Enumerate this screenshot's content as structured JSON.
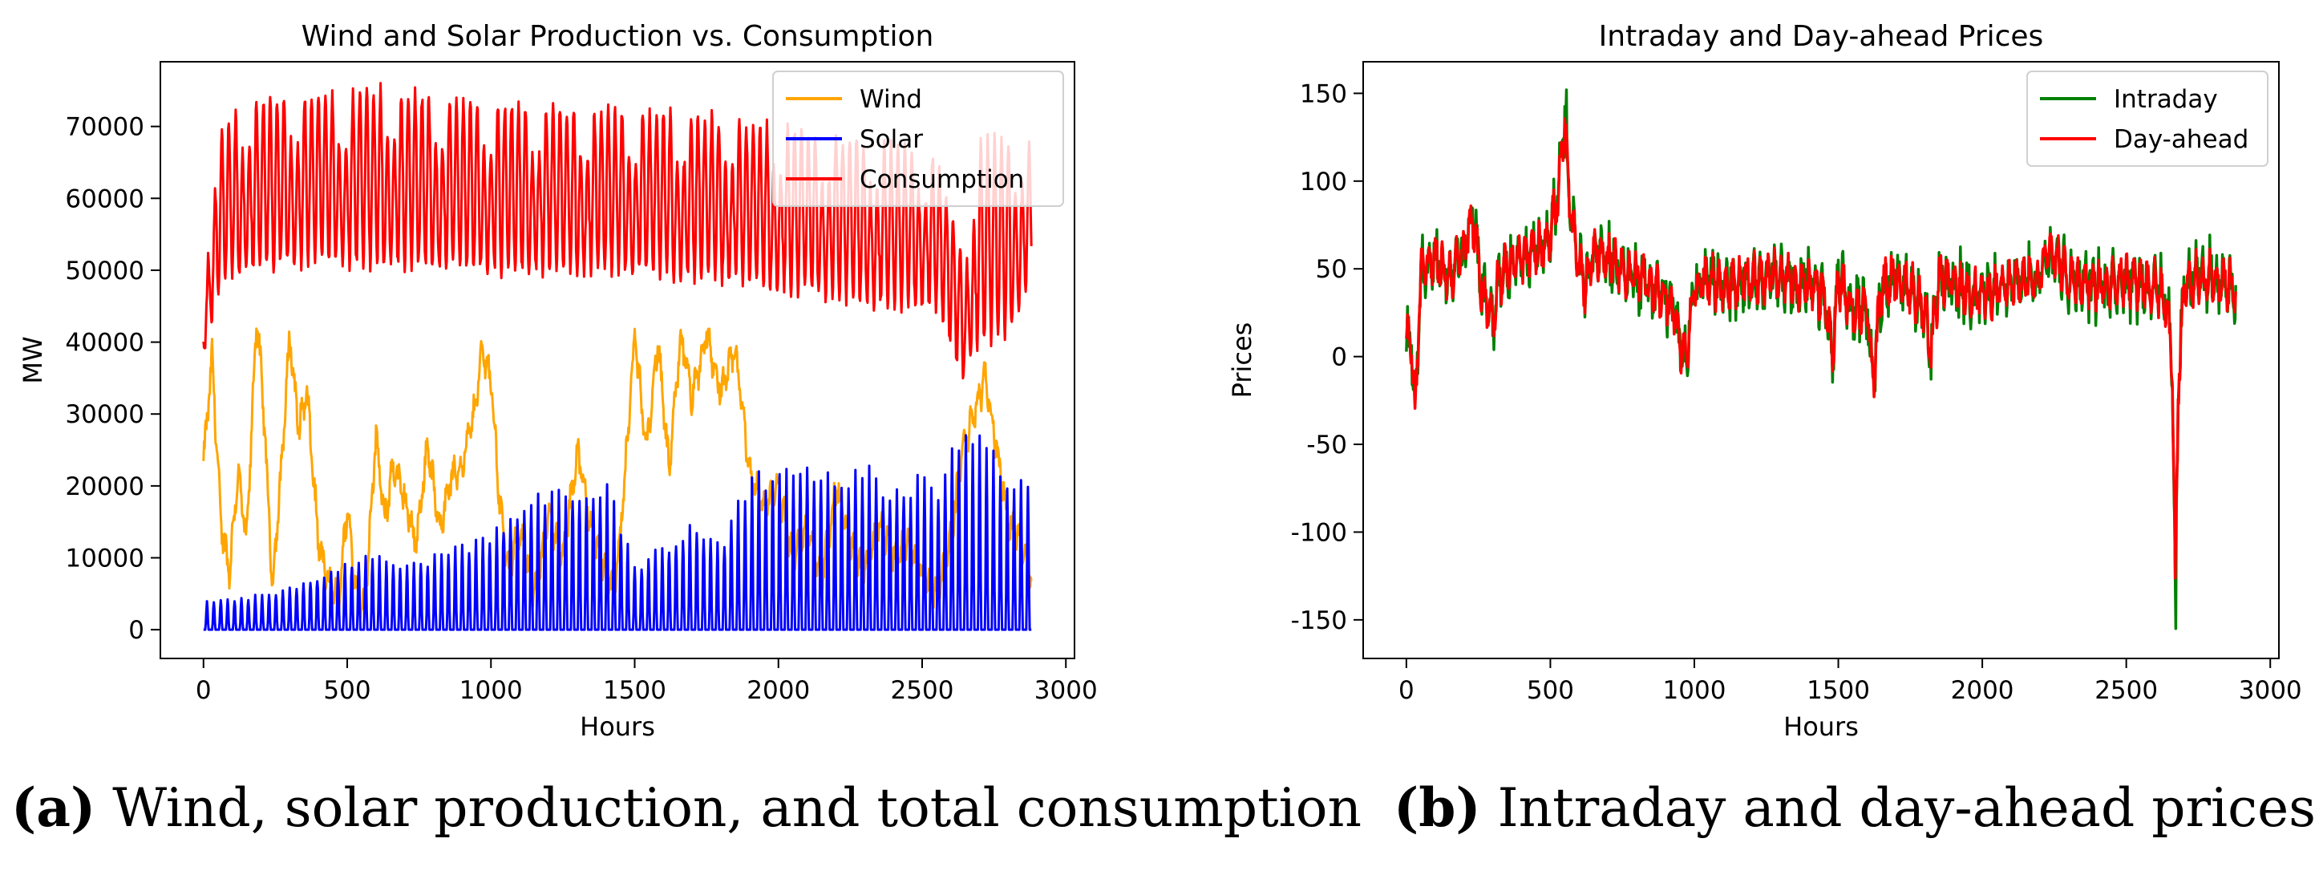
{
  "chart_data": [
    {
      "type": "line",
      "title": "Wind and Solar Production vs. Consumption",
      "xlabel": "Hours",
      "ylabel": "MW",
      "xlim": [
        -150,
        3030
      ],
      "ylim": [
        -4000,
        79000
      ],
      "xticks": [
        0,
        500,
        1000,
        1500,
        2000,
        2500,
        3000
      ],
      "yticks": [
        0,
        10000,
        20000,
        30000,
        40000,
        50000,
        60000,
        70000
      ],
      "grid": false,
      "legend": "top-right",
      "series": [
        {
          "name": "Wind",
          "color": "#ffa500"
        },
        {
          "name": "Solar",
          "color": "#0000ff"
        },
        {
          "name": "Consumption",
          "color": "#ff0000"
        }
      ],
      "wind_profile": {
        "x": [
          0,
          30,
          60,
          90,
          120,
          150,
          185,
          210,
          240,
          270,
          300,
          330,
          360,
          400,
          430,
          470,
          500,
          530,
          560,
          600,
          630,
          660,
          700,
          740,
          780,
          820,
          860,
          900,
          940,
          970,
          1000,
          1030,
          1060,
          1100,
          1150,
          1200,
          1250,
          1300,
          1350,
          1400,
          1430,
          1460,
          1500,
          1540,
          1580,
          1620,
          1660,
          1700,
          1750,
          1800,
          1850,
          1900,
          1950,
          2000,
          2050,
          2100,
          2150,
          2200,
          2250,
          2300,
          2350,
          2400,
          2450,
          2500,
          2550,
          2600,
          2640,
          2680,
          2720,
          2760,
          2800,
          2850,
          2880
        ],
        "y": [
          23000,
          38000,
          15000,
          8000,
          22000,
          12000,
          44000,
          30000,
          6000,
          22000,
          41000,
          28000,
          33000,
          12000,
          7000,
          4000,
          17000,
          6000,
          3000,
          27000,
          15000,
          23000,
          18000,
          12000,
          26000,
          14000,
          21000,
          23000,
          30000,
          39000,
          35000,
          18000,
          8000,
          14000,
          5000,
          16000,
          10000,
          25000,
          14000,
          8000,
          6000,
          18000,
          41000,
          25000,
          40000,
          22000,
          41000,
          32000,
          41000,
          33000,
          39000,
          22000,
          17000,
          20000,
          10000,
          15000,
          7000,
          20000,
          12000,
          8000,
          15000,
          10000,
          12000,
          8000,
          5000,
          13000,
          25000,
          30000,
          35000,
          25000,
          15000,
          12000,
          7000
        ]
      },
      "solar_profile": {
        "x": [
          0,
          200,
          300,
          400,
          500,
          600,
          700,
          800,
          900,
          1000,
          1100,
          1200,
          1300,
          1400,
          1500,
          1600,
          1700,
          1800,
          1900,
          2000,
          2100,
          2200,
          2300,
          2400,
          2500,
          2550,
          2600,
          2650,
          2700,
          2750,
          2800,
          2880
        ],
        "y": [
          4000,
          5000,
          6000,
          8000,
          10000,
          10500,
          9000,
          10500,
          12000,
          14000,
          18000,
          19500,
          20500,
          21500,
          9000,
          12000,
          15000,
          12000,
          22000,
          23000,
          25000,
          21500,
          24000,
          20000,
          22000,
          20000,
          27000,
          28500,
          28500,
          26000,
          20000,
          22500
        ]
      },
      "consumption_profile": {
        "x": [
          0,
          60,
          150,
          300,
          600,
          1000,
          1400,
          1800,
          2100,
          2400,
          2550,
          2640,
          2700,
          2800,
          2880
        ],
        "max": [
          45000,
          69000,
          73000,
          74000,
          75000,
          73000,
          72000,
          71000,
          69000,
          67000,
          66000,
          52000,
          68000,
          68000,
          67000
        ],
        "min": [
          38000,
          48000,
          50000,
          51000,
          51000,
          50000,
          50000,
          49000,
          47000,
          45000,
          45000,
          35000,
          40000,
          41000,
          50000
        ]
      }
    },
    {
      "type": "line",
      "title": "Intraday and Day-ahead Prices",
      "xlabel": "Hours",
      "ylabel": "Prices",
      "xlim": [
        -150,
        3030
      ],
      "ylim": [
        -172,
        168
      ],
      "xticks": [
        0,
        500,
        1000,
        1500,
        2000,
        2500,
        3000
      ],
      "yticks": [
        -150,
        -100,
        -50,
        0,
        50,
        100,
        150
      ],
      "grid": false,
      "legend": "top-right",
      "series": [
        {
          "name": "Intraday",
          "color": "#008000"
        },
        {
          "name": "Day-ahead",
          "color": "#ff0000"
        }
      ],
      "price_profile": {
        "x": [
          0,
          20,
          30,
          50,
          100,
          150,
          200,
          230,
          260,
          300,
          320,
          350,
          400,
          450,
          500,
          530,
          550,
          560,
          580,
          600,
          620,
          650,
          700,
          750,
          800,
          850,
          900,
          930,
          950,
          970,
          1000,
          1050,
          1100,
          1200,
          1300,
          1400,
          1450,
          1480,
          1500,
          1550,
          1600,
          1620,
          1650,
          1700,
          1750,
          1800,
          1820,
          1850,
          1900,
          2000,
          2100,
          2150,
          2200,
          2230,
          2300,
          2400,
          2500,
          2600,
          2640,
          2660,
          2670,
          2680,
          2700,
          2750,
          2800,
          2880
        ],
        "y": [
          10,
          5,
          -35,
          50,
          55,
          45,
          60,
          80,
          40,
          20,
          45,
          50,
          55,
          60,
          70,
          95,
          135,
          100,
          70,
          55,
          40,
          60,
          55,
          50,
          45,
          40,
          35,
          25,
          5,
          0,
          40,
          45,
          40,
          45,
          45,
          40,
          35,
          0,
          45,
          25,
          30,
          -15,
          40,
          45,
          40,
          25,
          0,
          45,
          40,
          35,
          40,
          45,
          45,
          65,
          45,
          40,
          45,
          40,
          30,
          -5,
          -130,
          -20,
          40,
          45,
          45,
          40
        ]
      }
    }
  ],
  "captions": {
    "a": {
      "label": "(a)",
      "text": " Wind, solar production, and total consumption"
    },
    "b": {
      "label": "(b)",
      "text": " Intraday and day-ahead prices"
    }
  }
}
